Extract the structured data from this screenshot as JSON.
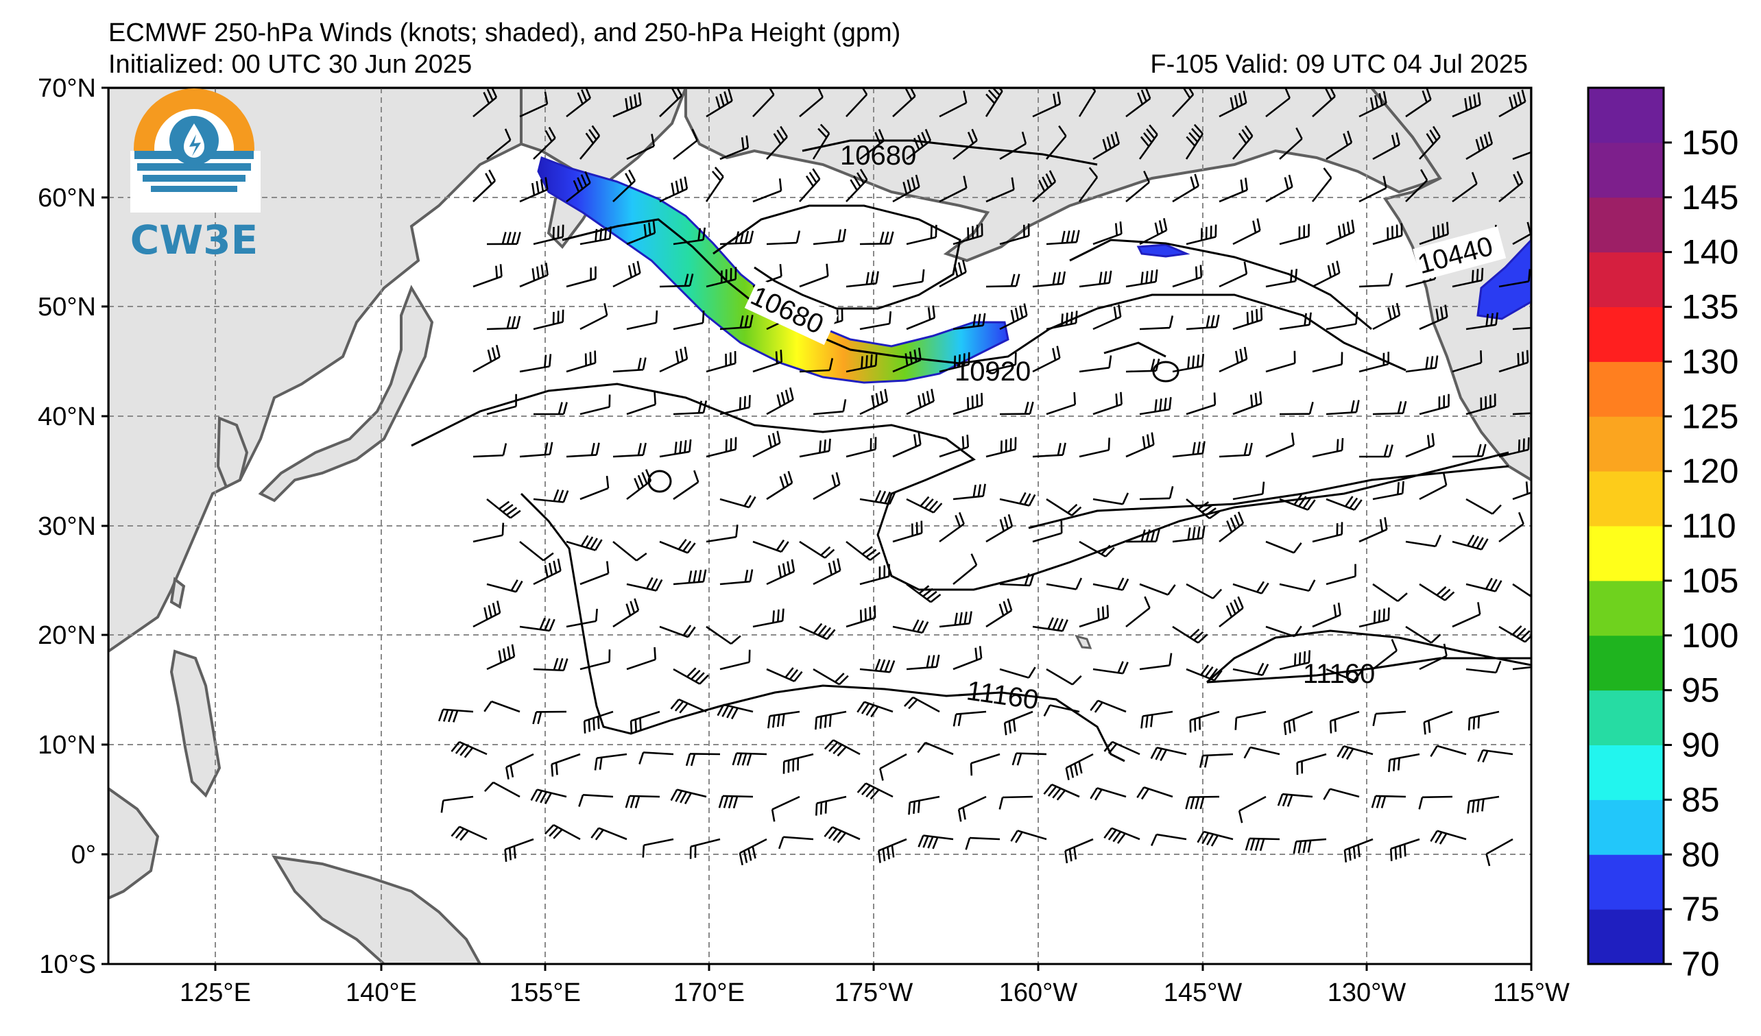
{
  "title": {
    "line1": "ECMWF 250-hPa Winds (knots; shaded), and 250-hPa Height (gpm)",
    "initialized": "Initialized: 00 UTC 30 Jun 2025",
    "valid": "F-105  Valid: 09 UTC 04 Jul 2025"
  },
  "logo": {
    "text": "CW3E",
    "colors": {
      "orange": "#f59a1f",
      "blue": "#2f86b5"
    }
  },
  "map": {
    "lon_range": [
      112,
      245
    ],
    "lat_range": [
      -10,
      70
    ],
    "lat_ticks": [
      "70°N",
      "60°N",
      "50°N",
      "40°N",
      "30°N",
      "20°N",
      "10°N",
      "0°",
      "10°S"
    ],
    "lon_ticks": [
      "125°E",
      "140°E",
      "155°E",
      "170°E",
      "175°W",
      "160°W",
      "145°W",
      "130°W",
      "115°W"
    ],
    "land_color": "#e3e3e3",
    "grid": true
  },
  "contours": {
    "labels": [
      "10680",
      "10680",
      "10920",
      "10440",
      "11160",
      "11160"
    ]
  },
  "colorbar": {
    "labels": [
      "150",
      "145",
      "140",
      "135",
      "130",
      "125",
      "120",
      "110",
      "105",
      "100",
      "95",
      "90",
      "85",
      "80",
      "75",
      "70"
    ],
    "colors": [
      "#1f1fc0",
      "#2a3cf2",
      "#22c7fa",
      "#22f5ee",
      "#26dca3",
      "#1fb41f",
      "#6fd21e",
      "#ffff1a",
      "#fdcc1a",
      "#fba51f",
      "#ff7f1f",
      "#ff1f1f",
      "#d51f3f",
      "#9d1f66",
      "#7d1f8c",
      "#6d1f99"
    ]
  }
}
